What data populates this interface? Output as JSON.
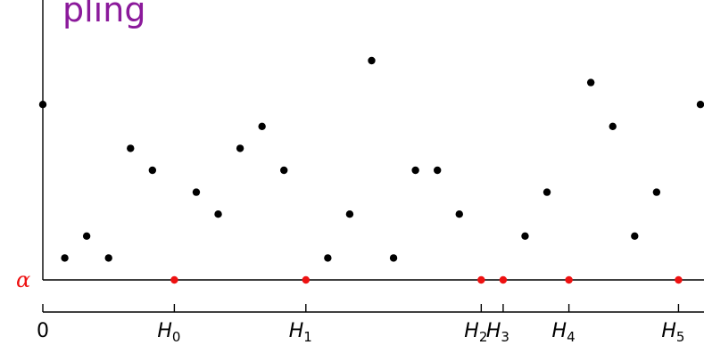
{
  "title": "pling",
  "colors": {
    "title": "#8b1a9b",
    "points": "#000000",
    "hits": "#ee1111",
    "axes": "#000000"
  },
  "alpha_label": "α",
  "zero_label": "0",
  "chart_data": {
    "type": "scatter",
    "title": "pling",
    "xlabel": "",
    "ylabel": "",
    "threshold_label": "α",
    "x_range": [
      0,
      30
    ],
    "y_range": [
      0,
      10
    ],
    "threshold": 0,
    "points": [
      {
        "x": 0,
        "y": 8
      },
      {
        "x": 1,
        "y": 1
      },
      {
        "x": 2,
        "y": 2
      },
      {
        "x": 3,
        "y": 1
      },
      {
        "x": 4,
        "y": 6
      },
      {
        "x": 5,
        "y": 5
      },
      {
        "x": 6,
        "y": 0
      },
      {
        "x": 7,
        "y": 4
      },
      {
        "x": 8,
        "y": 3
      },
      {
        "x": 9,
        "y": 6
      },
      {
        "x": 10,
        "y": 7
      },
      {
        "x": 11,
        "y": 5
      },
      {
        "x": 12,
        "y": 0
      },
      {
        "x": 13,
        "y": 1
      },
      {
        "x": 14,
        "y": 3
      },
      {
        "x": 15,
        "y": 10
      },
      {
        "x": 16,
        "y": 1
      },
      {
        "x": 17,
        "y": 5
      },
      {
        "x": 18,
        "y": 5
      },
      {
        "x": 19,
        "y": 3
      },
      {
        "x": 20,
        "y": 0
      },
      {
        "x": 21,
        "y": 0
      },
      {
        "x": 22,
        "y": 2
      },
      {
        "x": 23,
        "y": 4
      },
      {
        "x": 24,
        "y": 0
      },
      {
        "x": 25,
        "y": 9
      },
      {
        "x": 26,
        "y": 7
      },
      {
        "x": 27,
        "y": 2
      },
      {
        "x": 28,
        "y": 4
      },
      {
        "x": 29,
        "y": 0
      },
      {
        "x": 30,
        "y": 8
      }
    ],
    "hitting_times": [
      {
        "label": "H",
        "sub": "0",
        "x": 6
      },
      {
        "label": "H",
        "sub": "1",
        "x": 12
      },
      {
        "label": "H",
        "sub": "2",
        "x": 20
      },
      {
        "label": "H",
        "sub": "3",
        "x": 21
      },
      {
        "label": "H",
        "sub": "4",
        "x": 24
      },
      {
        "label": "H",
        "sub": "5",
        "x": 29
      }
    ]
  }
}
